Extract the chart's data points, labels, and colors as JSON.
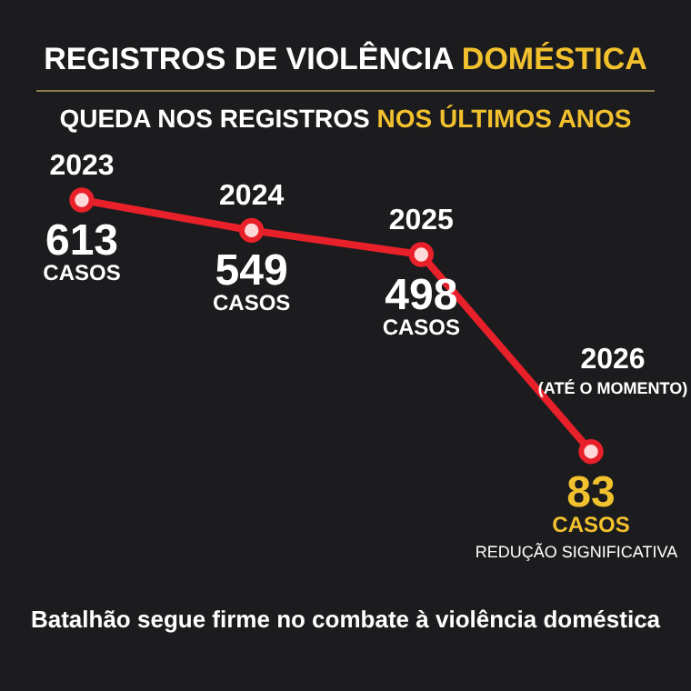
{
  "chart_data": {
    "type": "line",
    "title": "REGISTROS DE VIOLÊNCIA DOMÉSTICA",
    "subtitle": "QUEDA NOS REGISTROS NOS ÚLTIMOS ANOS",
    "categories": [
      "2023",
      "2024",
      "2025",
      "2026"
    ],
    "series": [
      {
        "color": "#e8202a",
        "values": [
          613,
          549,
          498,
          83
        ]
      }
    ],
    "data_labels": true,
    "marker": "circle",
    "annotations": [
      {
        "text": "CASOS",
        "x": "2023",
        "y": 613
      },
      {
        "text": "CASOS",
        "x": "2024",
        "y": 549
      },
      {
        "text": "CASOS",
        "x": "2025",
        "y": 498
      },
      {
        "text": "CASOS",
        "x": "2026",
        "y": 83
      },
      "(ATÉ O MOMENTO)",
      "REDUÇÃO SIGNIFICATIVA",
      "Batalhão segue firme no combate à violência doméstica"
    ]
  }
}
